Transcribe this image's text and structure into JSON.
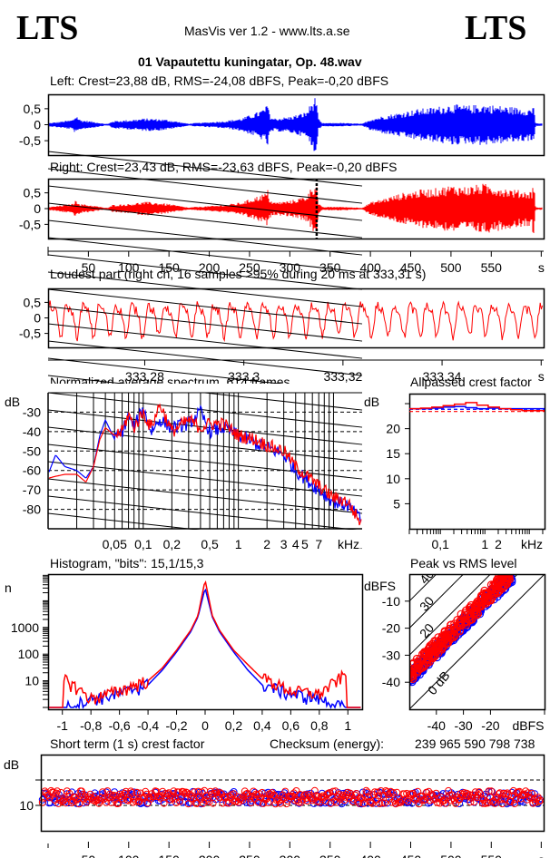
{
  "header": {
    "logo_left": "LTS",
    "logo_right": "LTS",
    "app_title": "MasVis ver 1.2 - www.lts.a.se",
    "file_name": "01 Vapautettu kuningatar, Op. 48.wav"
  },
  "colors": {
    "left": "#0000ff",
    "right": "#ff0000",
    "axis": "#000000"
  },
  "chart_data": [
    {
      "id": "waveform-left",
      "type": "area",
      "title": "Left: Crest=23,88 dB, RMS=-24,08 dBFS, Peak=-0,20 dBFS",
      "ylim": [
        -0.95,
        0.95
      ],
      "xlim": [
        0,
        615
      ],
      "yticks": [
        "0,5",
        "0",
        "-0,5"
      ],
      "ytick_values": [
        0.5,
        0,
        -0.5
      ],
      "envelope_times": [
        0,
        10,
        20,
        30,
        35,
        40,
        50,
        60,
        70,
        75,
        80,
        100,
        120,
        140,
        150,
        160,
        175,
        180,
        200,
        220,
        240,
        250,
        260,
        270,
        273,
        275,
        280,
        300,
        320,
        333,
        335,
        340,
        360,
        380,
        390,
        400,
        420,
        440,
        460,
        480,
        500,
        520,
        540,
        560,
        580,
        600,
        603,
        605,
        615
      ],
      "envelope_peak": [
        0.05,
        0.08,
        0.12,
        0.15,
        0.3,
        0.15,
        0.12,
        0.08,
        0.03,
        0.03,
        0.12,
        0.15,
        0.2,
        0.18,
        0.15,
        0.1,
        0.03,
        0.05,
        0.08,
        0.12,
        0.2,
        0.3,
        0.4,
        0.55,
        0.72,
        0.3,
        0.2,
        0.25,
        0.4,
        0.95,
        0.2,
        0.05,
        0.06,
        0.04,
        0.03,
        0.18,
        0.3,
        0.4,
        0.5,
        0.55,
        0.65,
        0.6,
        0.65,
        0.6,
        0.55,
        0.5,
        0.7,
        0.04,
        0.04
      ]
    },
    {
      "id": "waveform-right",
      "type": "area",
      "title": "Right: Crest=23,43 dB, RMS=-23,63 dBFS, Peak=-0,20 dBFS",
      "ylim": [
        -0.95,
        0.95
      ],
      "xlim": [
        0,
        615
      ],
      "yticks": [
        "0,5",
        "0",
        "-0,5"
      ],
      "ytick_values": [
        0.5,
        0,
        -0.5
      ],
      "xticks": [
        "50",
        "100",
        "150",
        "200",
        "250",
        "300",
        "350",
        "400",
        "450",
        "500",
        "550",
        "s"
      ],
      "xtick_values": [
        50,
        100,
        150,
        200,
        250,
        300,
        350,
        400,
        450,
        500,
        550,
        612
      ],
      "marker_time": 333.31,
      "envelope_times": [
        0,
        10,
        20,
        30,
        35,
        40,
        50,
        60,
        70,
        75,
        80,
        100,
        120,
        140,
        150,
        160,
        175,
        180,
        200,
        220,
        240,
        250,
        260,
        270,
        273,
        275,
        280,
        300,
        320,
        333,
        335,
        340,
        360,
        380,
        390,
        400,
        420,
        440,
        460,
        480,
        500,
        520,
        540,
        560,
        580,
        600,
        603,
        605,
        615
      ],
      "envelope_peak": [
        0.05,
        0.08,
        0.12,
        0.15,
        0.28,
        0.15,
        0.12,
        0.08,
        0.03,
        0.03,
        0.12,
        0.15,
        0.22,
        0.18,
        0.15,
        0.1,
        0.03,
        0.05,
        0.08,
        0.12,
        0.2,
        0.3,
        0.4,
        0.5,
        0.62,
        0.3,
        0.2,
        0.25,
        0.4,
        0.92,
        0.2,
        0.05,
        0.06,
        0.04,
        0.03,
        0.2,
        0.35,
        0.5,
        0.6,
        0.65,
        0.75,
        0.7,
        0.8,
        0.7,
        0.6,
        0.55,
        0.95,
        0.04,
        0.04
      ]
    },
    {
      "id": "loudest-part",
      "type": "line",
      "title": "Loudest part (right ch, 16 samples >95% during 20 ms at 333,31 s)",
      "ylim": [
        -0.95,
        0.95
      ],
      "xlim": [
        333.2605,
        333.3605
      ],
      "yticks": [
        "0,5",
        "0",
        "-0,5"
      ],
      "ytick_values": [
        0.5,
        0,
        -0.5
      ],
      "xticks": [
        "333,28",
        "333,3",
        "333,32",
        "333,34",
        "s"
      ],
      "xtick_values": [
        333.28,
        333.3,
        333.32,
        333.34,
        333.36
      ],
      "approx_period_ms": 3.3,
      "approx_amplitude": 0.7
    },
    {
      "id": "average-spectrum",
      "type": "line",
      "title": "Normalized average spectrum, 614 frames",
      "ylabel": "dB",
      "xlabel": "kHz",
      "xscale": "log",
      "xlim_khz": [
        0.01,
        20
      ],
      "ylim": [
        -90,
        -20
      ],
      "yticks": [
        "-30",
        "-40",
        "-50",
        "-60",
        "-70",
        "-80"
      ],
      "ytick_values": [
        -30,
        -40,
        -50,
        -60,
        -70,
        -80
      ],
      "xticks": [
        "0,05",
        "0,1",
        "0,2",
        "0,5",
        "1",
        "2",
        "3",
        "4",
        "5",
        "7",
        "kHz"
      ],
      "xtick_values": [
        0.05,
        0.1,
        0.2,
        0.5,
        1,
        2,
        3,
        4,
        5,
        7,
        16
      ],
      "series": [
        {
          "name": "Left",
          "freq_khz": [
            0.01,
            0.012,
            0.015,
            0.02,
            0.025,
            0.03,
            0.035,
            0.04,
            0.05,
            0.06,
            0.07,
            0.08,
            0.1,
            0.12,
            0.15,
            0.2,
            0.3,
            0.4,
            0.5,
            0.7,
            1,
            1.5,
            2,
            3,
            4,
            5,
            7,
            10,
            14,
            20
          ],
          "values": [
            -62,
            -52,
            -58,
            -60,
            -64,
            -58,
            -42,
            -34,
            -44,
            -40,
            -32,
            -38,
            -28,
            -40,
            -34,
            -38,
            -36,
            -30,
            -40,
            -38,
            -42,
            -46,
            -48,
            -52,
            -60,
            -64,
            -70,
            -76,
            -78,
            -86
          ]
        },
        {
          "name": "Right",
          "freq_khz": [
            0.01,
            0.012,
            0.015,
            0.02,
            0.025,
            0.03,
            0.035,
            0.04,
            0.05,
            0.06,
            0.07,
            0.08,
            0.1,
            0.12,
            0.15,
            0.2,
            0.3,
            0.4,
            0.5,
            0.7,
            1,
            1.5,
            2,
            3,
            4,
            5,
            7,
            10,
            14,
            20
          ],
          "values": [
            -64,
            -63,
            -62,
            -62,
            -66,
            -58,
            -44,
            -38,
            -42,
            -40,
            -31,
            -38,
            -30,
            -38,
            -26,
            -40,
            -34,
            -38,
            -36,
            -36,
            -42,
            -44,
            -47,
            -50,
            -58,
            -62,
            -68,
            -74,
            -76,
            -88
          ]
        }
      ]
    },
    {
      "id": "allpassed-crest",
      "type": "line",
      "title": "Allpassed crest factor",
      "ylabel": "dB",
      "xlabel": "kHz",
      "xscale": "log",
      "ylim": [
        0,
        27
      ],
      "yticks": [
        "20",
        "15",
        "10",
        "5"
      ],
      "ytick_values": [
        20,
        15,
        10,
        5
      ],
      "xticks": [
        "0,1",
        "1",
        "2",
        "kHz"
      ],
      "xtick_values": [
        0.1,
        1,
        2,
        10
      ],
      "series": [
        {
          "name": "Left",
          "values": [
            24.0,
            24.0,
            24.1,
            24.3,
            24.4,
            24.2,
            24.0,
            24.1,
            24.0,
            24.0,
            24.0,
            24.0
          ]
        },
        {
          "name": "Right",
          "values": [
            24.0,
            24.1,
            24.3,
            24.6,
            24.9,
            25.2,
            24.7,
            24.3,
            24.0,
            23.8,
            23.6,
            23.6
          ]
        }
      ],
      "reference_lines": [
        {
          "name": "Left crest",
          "value": 23.88
        },
        {
          "name": "Right crest",
          "value": 23.43
        }
      ]
    },
    {
      "id": "histogram",
      "type": "line",
      "title": "Histogram, \"bits\": 15,1/15,3",
      "ylabel": "n",
      "yscale": "log",
      "xlim": [
        -1.1,
        1.1
      ],
      "ylim": [
        1,
        100000
      ],
      "yticks": [
        "1000",
        "100",
        "10"
      ],
      "ytick_values": [
        1000,
        100,
        10
      ],
      "xticks": [
        "-1",
        "-0,8",
        "-0,6",
        "-0,4",
        "-0,2",
        "0",
        "0,2",
        "0,4",
        "0,6",
        "0,8",
        "1"
      ],
      "xtick_values": [
        -1,
        -0.8,
        -0.6,
        -0.4,
        -0.2,
        0,
        0.2,
        0.4,
        0.6,
        0.8,
        1
      ],
      "series": [
        {
          "name": "Left",
          "x": [
            -0.95,
            -0.8,
            -0.6,
            -0.4,
            -0.3,
            -0.2,
            -0.1,
            -0.05,
            0,
            0.05,
            0.1,
            0.2,
            0.3,
            0.4,
            0.6,
            0.8,
            0.95
          ],
          "values": [
            1,
            2,
            3,
            7,
            25,
            120,
            700,
            2500,
            30000,
            2500,
            700,
            120,
            25,
            7,
            3,
            2,
            1
          ]
        },
        {
          "name": "Right",
          "x": [
            -0.97,
            -0.8,
            -0.6,
            -0.4,
            -0.3,
            -0.2,
            -0.1,
            -0.05,
            0,
            0.05,
            0.1,
            0.2,
            0.3,
            0.4,
            0.6,
            0.8,
            0.97
          ],
          "values": [
            10,
            2,
            4,
            10,
            30,
            140,
            800,
            2800,
            60000,
            2800,
            800,
            140,
            40,
            12,
            4,
            3,
            15
          ]
        }
      ]
    },
    {
      "id": "peak-vs-rms",
      "type": "scatter",
      "title": "Peak vs RMS level",
      "xlabel": "dBFS",
      "ylabel": "dBFS",
      "xlim": [
        -50,
        0
      ],
      "ylim": [
        -50,
        0
      ],
      "xticks": [
        "-40",
        "-30",
        "-20",
        "dBFS"
      ],
      "xtick_values": [
        -40,
        -30,
        -20,
        0
      ],
      "yticks": [
        "-10",
        "-20",
        "-30",
        "-40"
      ],
      "ytick_values": [
        -10,
        -20,
        -30,
        -40
      ],
      "diagonal_labels": [
        "0 dB",
        "10",
        "20",
        "30",
        "40"
      ],
      "diagonal_offsets_db": [
        0,
        10,
        20,
        30,
        40
      ],
      "series": [
        {
          "name": "Left",
          "rms_range": [
            -50,
            -12
          ],
          "crest_range_db": [
            9,
            14
          ]
        },
        {
          "name": "Right",
          "rms_range": [
            -50,
            -12
          ],
          "crest_range_db": [
            10,
            16
          ]
        }
      ]
    },
    {
      "id": "short-term-crest",
      "type": "scatter",
      "title": "Short term (1 s) crest factor",
      "ylabel": "dB",
      "ylim": [
        5,
        20
      ],
      "yticks": [
        "10"
      ],
      "ytick_values": [
        10
      ],
      "dashed_lines": [
        10,
        15
      ],
      "xticks": [
        "50",
        "100",
        "150",
        "200",
        "250",
        "300",
        "350",
        "400",
        "450",
        "500",
        "550",
        "s"
      ],
      "xtick_values": [
        50,
        100,
        150,
        200,
        250,
        300,
        350,
        400,
        450,
        500,
        550,
        612
      ],
      "series": [
        {
          "name": "Left",
          "mean": 11.5,
          "spread": 1.2
        },
        {
          "name": "Right",
          "mean": 11.6,
          "spread": 1.3
        }
      ]
    }
  ],
  "footer": {
    "checksum_label": "Checksum (energy):",
    "checksum_value": "239 965 590 798 738"
  }
}
